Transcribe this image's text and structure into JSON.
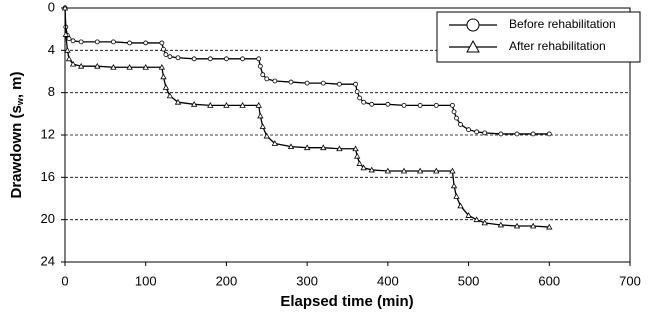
{
  "chart_data": {
    "type": "line",
    "xlabel": "Elapsed time (min)",
    "ylabel": [
      "Drawdown (s",
      "w",
      ", m)"
    ],
    "xlim": [
      0,
      700
    ],
    "xticks": [
      0,
      100,
      200,
      300,
      400,
      500,
      600,
      700
    ],
    "ylim": [
      0,
      24
    ],
    "yticks": [
      0,
      4,
      8,
      12,
      16,
      20,
      24
    ],
    "y_inverted": true,
    "grid": true,
    "legend": "upper right",
    "x": [
      0,
      1,
      3,
      5,
      10,
      20,
      40,
      60,
      80,
      100,
      120,
      122,
      125,
      130,
      140,
      160,
      180,
      200,
      220,
      240,
      242,
      245,
      250,
      260,
      280,
      300,
      320,
      340,
      360,
      362,
      365,
      370,
      380,
      400,
      420,
      440,
      460,
      480,
      482,
      485,
      490,
      500,
      510,
      520,
      540,
      560,
      580,
      600
    ],
    "series": [
      {
        "name": "Before rehabilitation",
        "marker": "circle",
        "color": "#000000",
        "values": [
          0,
          1.8,
          2.6,
          2.9,
          3.1,
          3.2,
          3.2,
          3.2,
          3.3,
          3.3,
          3.3,
          3.9,
          4.4,
          4.6,
          4.7,
          4.8,
          4.8,
          4.8,
          4.8,
          4.8,
          5.5,
          6.3,
          6.7,
          6.9,
          7.0,
          7.1,
          7.1,
          7.2,
          7.2,
          7.9,
          8.5,
          8.9,
          9.1,
          9.1,
          9.2,
          9.2,
          9.2,
          9.2,
          9.8,
          10.4,
          11.0,
          11.5,
          11.7,
          11.8,
          11.9,
          11.9,
          11.9,
          11.9
        ]
      },
      {
        "name": "After rehabilitation",
        "marker": "triangle",
        "color": "#000000",
        "values": [
          0,
          2.5,
          4.0,
          4.8,
          5.3,
          5.5,
          5.5,
          5.6,
          5.6,
          5.6,
          5.6,
          6.5,
          7.5,
          8.3,
          8.9,
          9.1,
          9.2,
          9.2,
          9.2,
          9.2,
          10.2,
          11.2,
          12.1,
          12.8,
          13.1,
          13.2,
          13.2,
          13.3,
          13.3,
          14.0,
          14.7,
          15.1,
          15.3,
          15.4,
          15.4,
          15.4,
          15.4,
          15.4,
          16.8,
          17.8,
          18.7,
          19.6,
          20.0,
          20.3,
          20.5,
          20.6,
          20.6,
          20.7
        ]
      }
    ]
  }
}
